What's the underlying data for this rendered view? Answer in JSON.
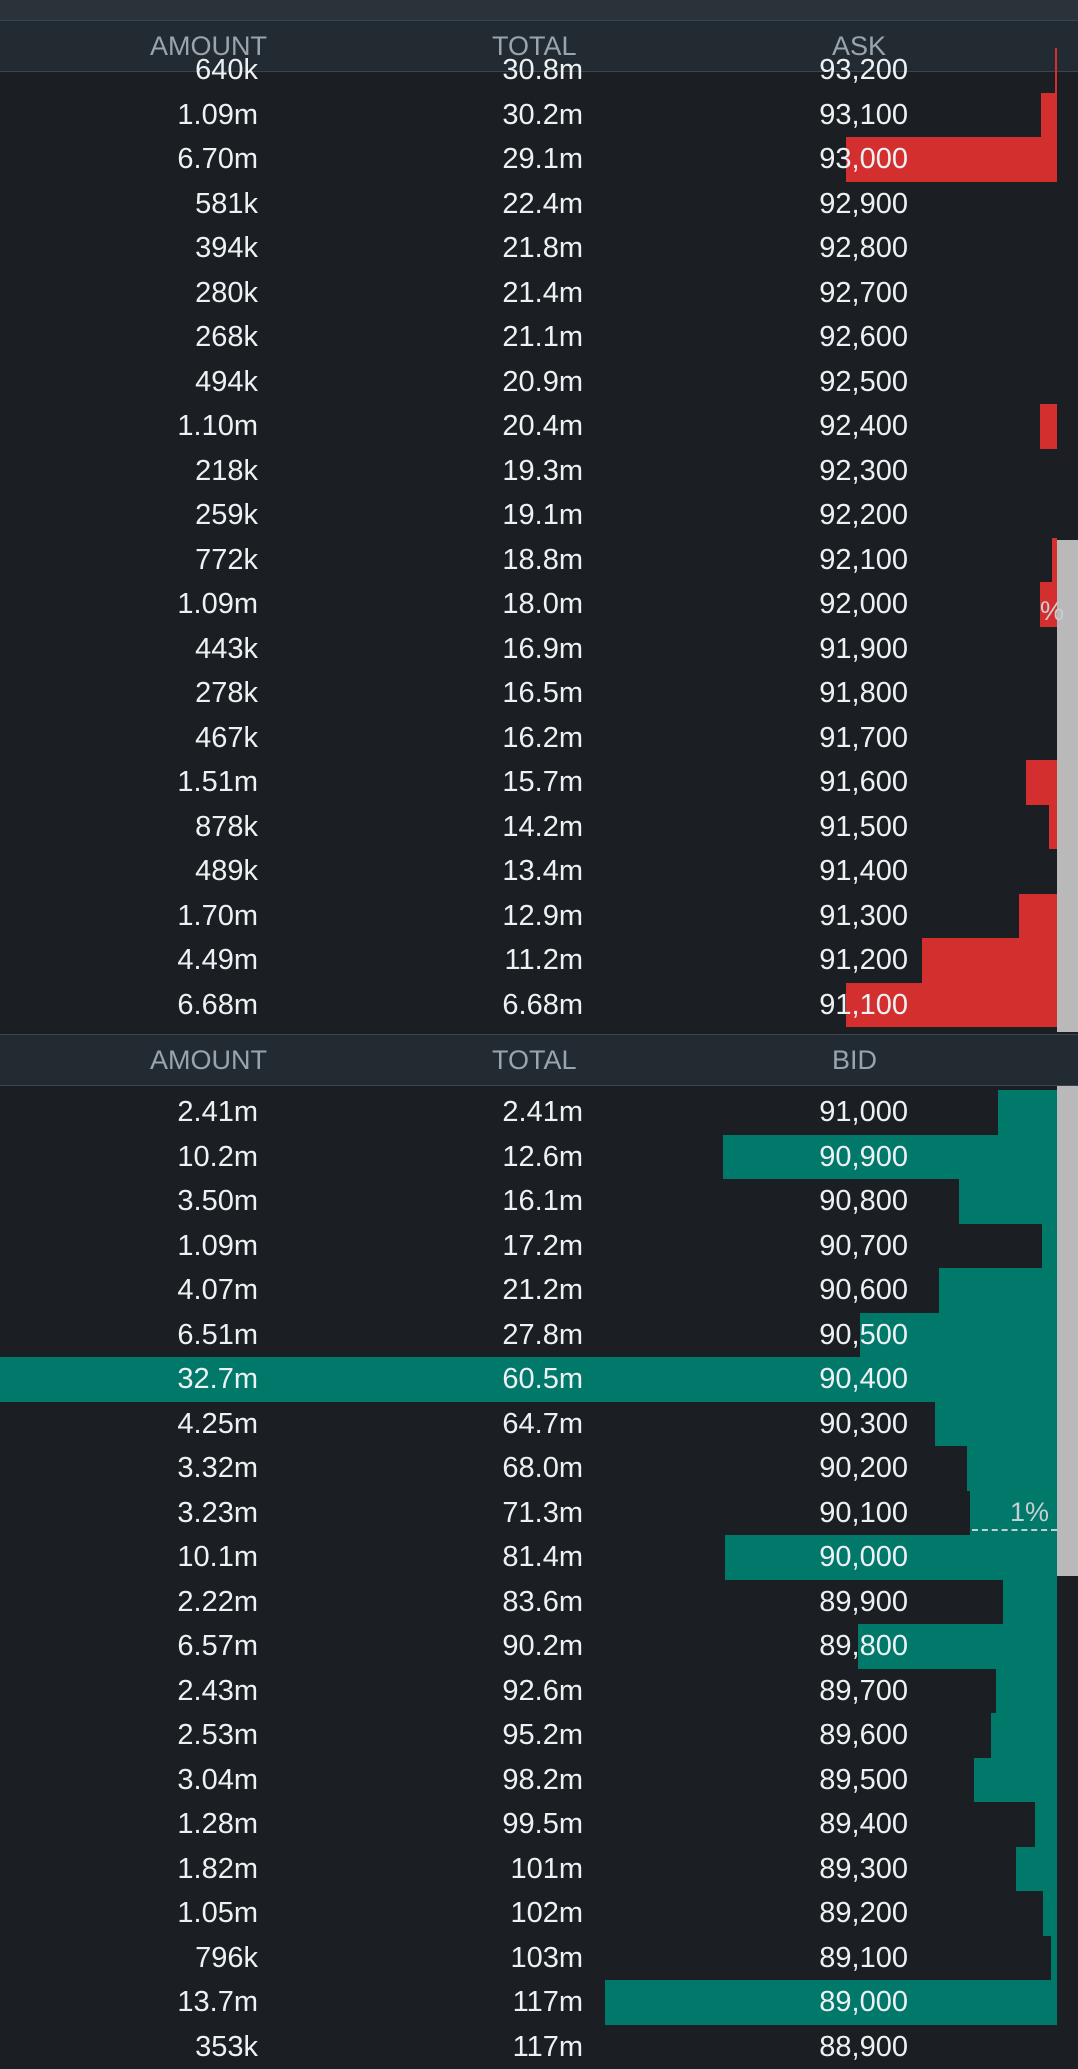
{
  "colors": {
    "background": "#1b1f24",
    "header": "#232b32",
    "ask_bar": "#d32f2f",
    "bid_bar": "#00796b",
    "scrollbar": "#b9b9b9"
  },
  "ask_header": {
    "amount": "AMOUNT",
    "total": "TOTAL",
    "price": "ASK"
  },
  "bid_header": {
    "amount": "AMOUNT",
    "total": "TOTAL",
    "price": "BID"
  },
  "ask_marker": {
    "label": "%"
  },
  "bid_marker": {
    "label": "1%"
  },
  "asks": [
    {
      "amount": "640k",
      "total": "30.8m",
      "price": "93,200",
      "depth": 0.002
    },
    {
      "amount": "1.09m",
      "total": "30.2m",
      "price": "93,100",
      "depth": 0.015
    },
    {
      "amount": "6.70m",
      "total": "29.1m",
      "price": "93,000",
      "depth": 0.2
    },
    {
      "amount": "581k",
      "total": "22.4m",
      "price": "92,900",
      "depth": 0
    },
    {
      "amount": "394k",
      "total": "21.8m",
      "price": "92,800",
      "depth": 0
    },
    {
      "amount": "280k",
      "total": "21.4m",
      "price": "92,700",
      "depth": 0
    },
    {
      "amount": "268k",
      "total": "21.1m",
      "price": "92,600",
      "depth": 0
    },
    {
      "amount": "494k",
      "total": "20.9m",
      "price": "92,500",
      "depth": 0
    },
    {
      "amount": "1.10m",
      "total": "20.4m",
      "price": "92,400",
      "depth": 0.016
    },
    {
      "amount": "218k",
      "total": "19.3m",
      "price": "92,300",
      "depth": 0
    },
    {
      "amount": "259k",
      "total": "19.1m",
      "price": "92,200",
      "depth": 0
    },
    {
      "amount": "772k",
      "total": "18.8m",
      "price": "92,100",
      "depth": 0.005
    },
    {
      "amount": "1.09m",
      "total": "18.0m",
      "price": "92,000",
      "depth": 0.016
    },
    {
      "amount": "443k",
      "total": "16.9m",
      "price": "91,900",
      "depth": 0
    },
    {
      "amount": "278k",
      "total": "16.5m",
      "price": "91,800",
      "depth": 0
    },
    {
      "amount": "467k",
      "total": "16.2m",
      "price": "91,700",
      "depth": 0
    },
    {
      "amount": "1.51m",
      "total": "15.7m",
      "price": "91,600",
      "depth": 0.029
    },
    {
      "amount": "878k",
      "total": "14.2m",
      "price": "91,500",
      "depth": 0.008
    },
    {
      "amount": "489k",
      "total": "13.4m",
      "price": "91,400",
      "depth": 0
    },
    {
      "amount": "1.70m",
      "total": "12.9m",
      "price": "91,300",
      "depth": 0.036
    },
    {
      "amount": "4.49m",
      "total": "11.2m",
      "price": "91,200",
      "depth": 0.128
    },
    {
      "amount": "6.68m",
      "total": "6.68m",
      "price": "91,100",
      "depth": 0.2
    }
  ],
  "bids": [
    {
      "amount": "2.41m",
      "total": "2.41m",
      "price": "91,000",
      "depth": 0.056
    },
    {
      "amount": "10.2m",
      "total": "12.6m",
      "price": "90,900",
      "depth": 0.316
    },
    {
      "amount": "3.50m",
      "total": "16.1m",
      "price": "90,800",
      "depth": 0.093
    },
    {
      "amount": "1.09m",
      "total": "17.2m",
      "price": "90,700",
      "depth": 0.014
    },
    {
      "amount": "4.07m",
      "total": "21.2m",
      "price": "90,600",
      "depth": 0.112
    },
    {
      "amount": "6.51m",
      "total": "27.8m",
      "price": "90,500",
      "depth": 0.186
    },
    {
      "amount": "32.7m",
      "total": "60.5m",
      "price": "90,400",
      "depth": 1.0
    },
    {
      "amount": "4.25m",
      "total": "64.7m",
      "price": "90,300",
      "depth": 0.115
    },
    {
      "amount": "3.32m",
      "total": "68.0m",
      "price": "90,200",
      "depth": 0.085
    },
    {
      "amount": "3.23m",
      "total": "71.3m",
      "price": "90,100",
      "depth": 0.082
    },
    {
      "amount": "10.1m",
      "total": "81.4m",
      "price": "90,000",
      "depth": 0.314
    },
    {
      "amount": "2.22m",
      "total": "83.6m",
      "price": "89,900",
      "depth": 0.051
    },
    {
      "amount": "6.57m",
      "total": "90.2m",
      "price": "89,800",
      "depth": 0.188
    },
    {
      "amount": "2.43m",
      "total": "92.6m",
      "price": "89,700",
      "depth": 0.058
    },
    {
      "amount": "2.53m",
      "total": "95.2m",
      "price": "89,600",
      "depth": 0.062
    },
    {
      "amount": "3.04m",
      "total": "98.2m",
      "price": "89,500",
      "depth": 0.079
    },
    {
      "amount": "1.28m",
      "total": "99.5m",
      "price": "89,400",
      "depth": 0.021
    },
    {
      "amount": "1.82m",
      "total": "101m",
      "price": "89,300",
      "depth": 0.039
    },
    {
      "amount": "1.05m",
      "total": "102m",
      "price": "89,200",
      "depth": 0.013
    },
    {
      "amount": "796k",
      "total": "103m",
      "price": "89,100",
      "depth": 0.006
    },
    {
      "amount": "13.7m",
      "total": "117m",
      "price": "89,000",
      "depth": 0.428
    },
    {
      "amount": "353k",
      "total": "117m",
      "price": "88,900",
      "depth": 0
    }
  ]
}
